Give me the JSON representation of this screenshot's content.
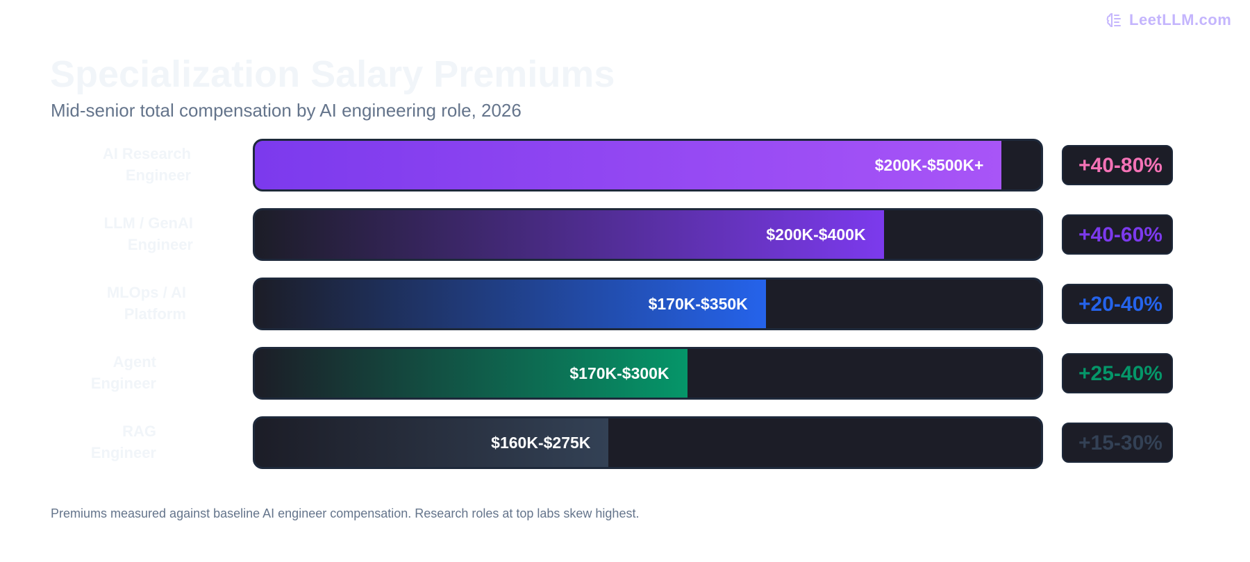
{
  "brand": {
    "name": "LeetLLM.com",
    "icon": "brain-icon",
    "color": "#c4b5fd"
  },
  "chart_data": {
    "type": "bar",
    "orientation": "horizontal",
    "title": "Specialization Salary Premiums",
    "subtitle": "Mid-senior total compensation by AI engineering role, 2026",
    "categories": [
      "AI Research Engineer",
      "LLM / GenAI Engineer",
      "MLOps / AI Platform",
      "Agent Engineer",
      "RAG Engineer"
    ],
    "series": [
      {
        "values_label": [
          "$200K-$500K+",
          "$200K-$400K",
          "$170K-$350K",
          "$170K-$300K",
          "$160K-$275K"
        ],
        "fill_percent": [
          95,
          80,
          65,
          55,
          45
        ],
        "colors": [
          "#a855f7",
          "#7c3aed",
          "#2563eb",
          "#059669",
          "#334155"
        ]
      }
    ],
    "premiums": [
      "+40-80%",
      "+40-60%",
      "+20-40%",
      "+25-40%",
      "+15-30%"
    ],
    "premium_colors": [
      "#f472b6",
      "#7c3aed",
      "#2563eb",
      "#059669",
      "#334155"
    ],
    "grid": false,
    "footnote": "Premiums measured against baseline AI engineer compensation. Research roles at top labs skew highest."
  }
}
